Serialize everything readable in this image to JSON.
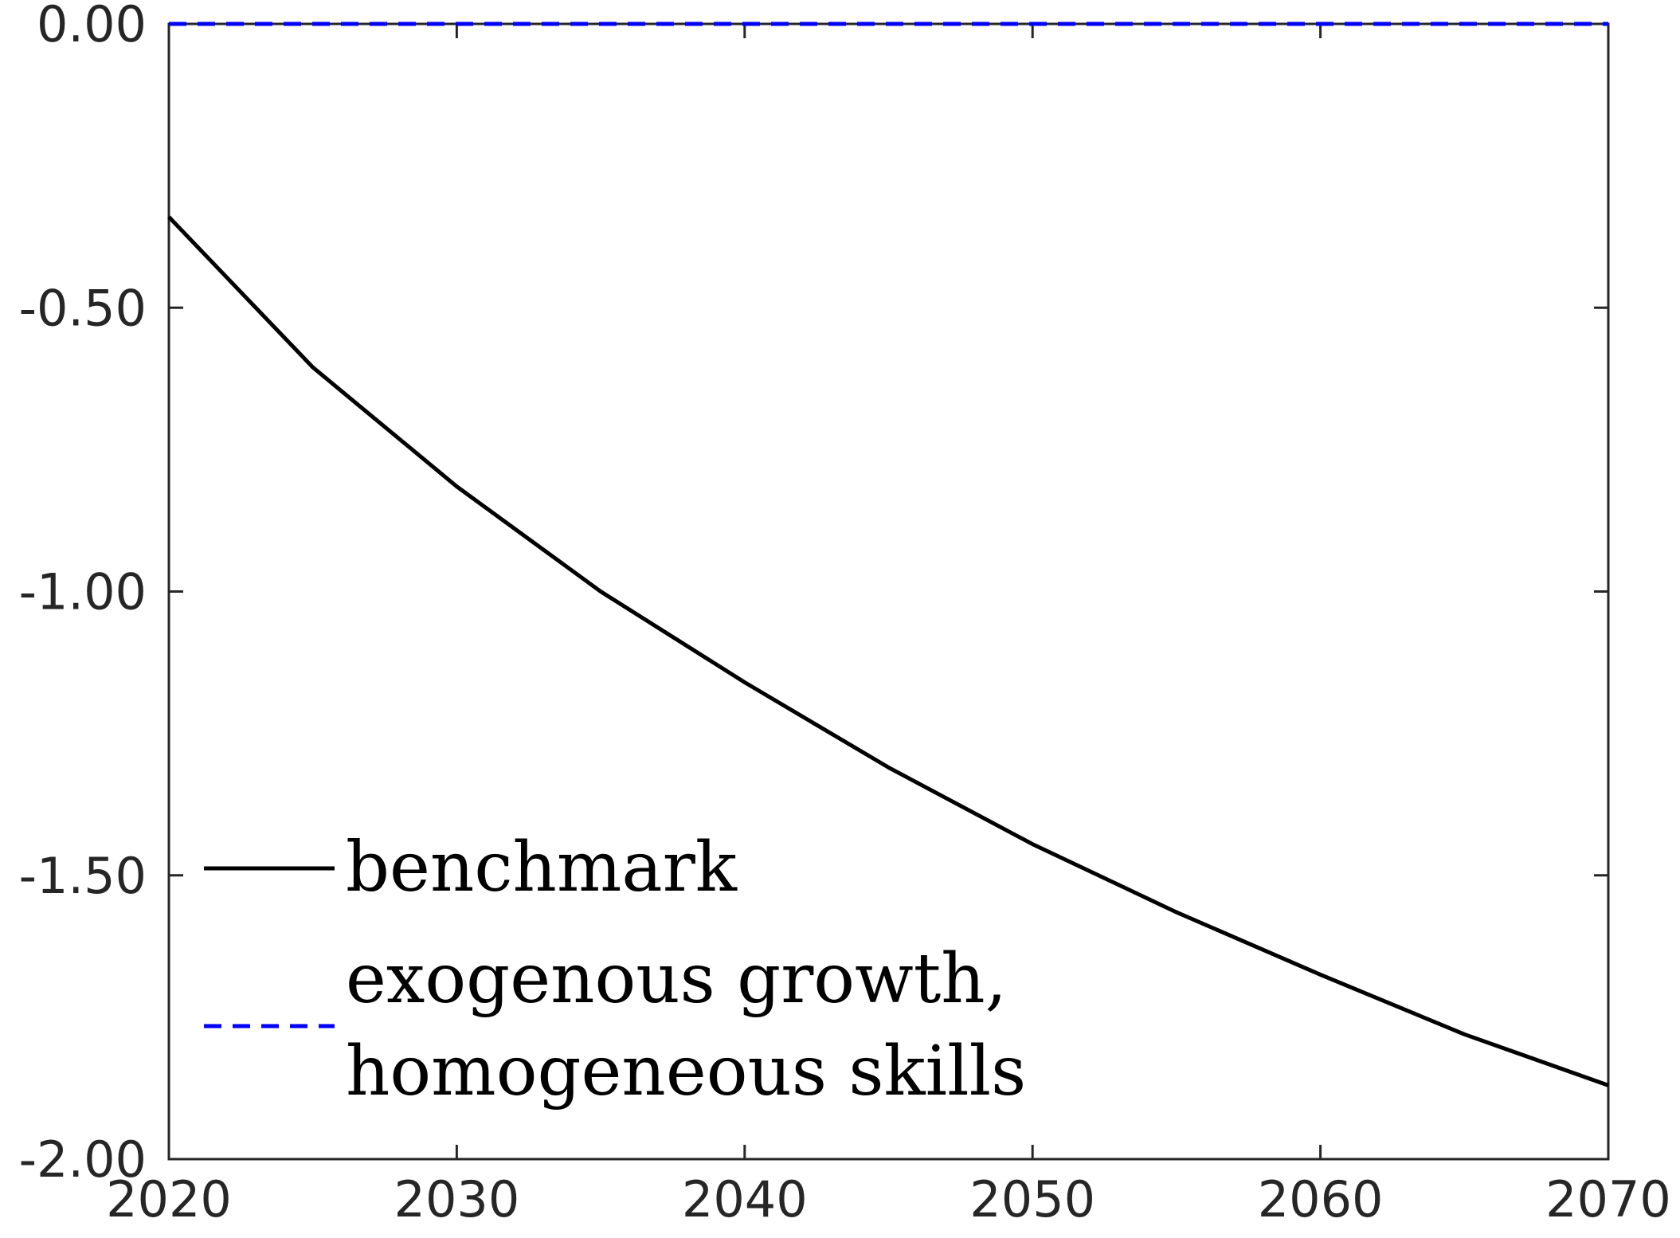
{
  "chart_data": {
    "type": "line",
    "title": "",
    "xlabel": "",
    "ylabel": "",
    "xlim": [
      2020,
      2070
    ],
    "ylim": [
      -2.0,
      0.0
    ],
    "x_ticks": [
      2020,
      2030,
      2040,
      2050,
      2060,
      2070
    ],
    "x_tick_labels": [
      "2020",
      "2030",
      "2040",
      "2050",
      "2060",
      "2070"
    ],
    "y_ticks": [
      0.0,
      -0.5,
      -1.0,
      -1.5,
      -2.0
    ],
    "y_tick_labels": [
      "0.00",
      "-0.50",
      "-1.00",
      "-1.50",
      "-2.00"
    ],
    "grid": false,
    "legend_position": "bottom-left",
    "series": [
      {
        "name": "benchmark",
        "color": "#000000",
        "style": "solid",
        "x": [
          2020,
          2025,
          2030,
          2035,
          2040,
          2045,
          2050,
          2055,
          2060,
          2065,
          2070
        ],
        "y": [
          -0.34,
          -0.605,
          -0.815,
          -1.0,
          -1.16,
          -1.31,
          -1.445,
          -1.565,
          -1.675,
          -1.78,
          -1.87
        ]
      },
      {
        "name": "exogenous growth, homogeneous skills",
        "color": "#0000ff",
        "style": "dashed",
        "x": [
          2020,
          2025,
          2030,
          2035,
          2040,
          2045,
          2050,
          2055,
          2060,
          2065,
          2070
        ],
        "y": [
          0.0,
          0.0,
          0.0,
          0.0,
          0.0,
          0.0,
          0.0,
          0.0,
          0.0,
          0.0,
          0.0
        ]
      }
    ],
    "legend": {
      "entries": [
        {
          "lines": [
            "benchmark"
          ]
        },
        {
          "lines": [
            "exogenous growth,",
            "homogeneous skills"
          ]
        }
      ]
    }
  }
}
